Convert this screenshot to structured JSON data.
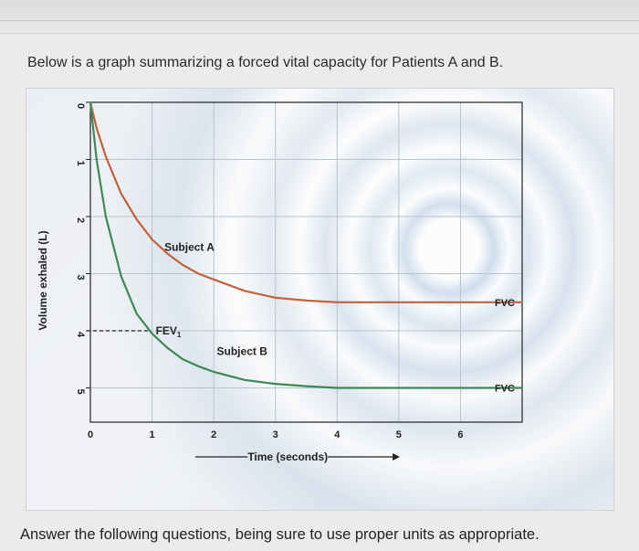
{
  "intro_text": "Below is a graph summarizing a forced vital capacity for Patients A and B.",
  "footer_text": "Answer the following questions, being sure to use proper units as appropriate.",
  "chart_data": {
    "type": "line",
    "xlabel": "Time (seconds)",
    "ylabel": "Volume exhaled (L)",
    "xlim": [
      0,
      7
    ],
    "ylim": [
      0,
      5.6
    ],
    "y_inverted": true,
    "grid": true,
    "x_ticks": [
      0,
      1,
      2,
      3,
      4,
      5,
      6
    ],
    "y_ticks": [
      0,
      1,
      2,
      3,
      4,
      5
    ],
    "series": [
      {
        "name": "Subject A",
        "color": "#c0623c",
        "end_label": "FVC",
        "x": [
          0,
          0.1,
          0.25,
          0.5,
          0.75,
          1.0,
          1.25,
          1.5,
          1.75,
          2.0,
          2.5,
          3.0,
          3.5,
          4.0,
          5.0,
          6.0,
          7.0
        ],
        "y": [
          0,
          0.45,
          0.95,
          1.6,
          2.05,
          2.4,
          2.65,
          2.85,
          3.0,
          3.1,
          3.3,
          3.42,
          3.47,
          3.5,
          3.5,
          3.5,
          3.5
        ]
      },
      {
        "name": "Subject B",
        "color": "#3e8a56",
        "end_label": "FVC",
        "x": [
          0,
          0.1,
          0.25,
          0.5,
          0.75,
          1.0,
          1.25,
          1.5,
          1.75,
          2.0,
          2.5,
          3.0,
          3.5,
          4.0,
          5.0,
          6.0,
          7.0
        ],
        "y": [
          0,
          1.0,
          2.0,
          3.05,
          3.7,
          4.05,
          4.3,
          4.5,
          4.62,
          4.72,
          4.86,
          4.93,
          4.97,
          5.0,
          5.0,
          5.0,
          5.0
        ]
      }
    ],
    "annotations": [
      {
        "text": "FEV",
        "subscript": "1",
        "x": 1,
        "y": 4
      }
    ]
  }
}
